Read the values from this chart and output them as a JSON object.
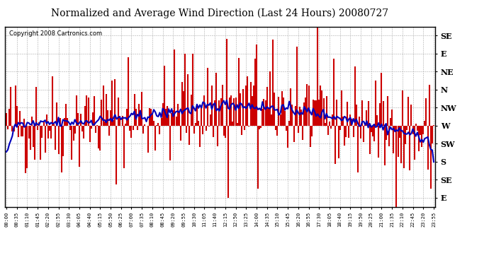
{
  "title": "Normalized and Average Wind Direction (Last 24 Hours) 20080727",
  "copyright": "Copyright 2008 Cartronics.com",
  "ytick_labels": [
    "SE",
    "E",
    "NE",
    "N",
    "NW",
    "W",
    "SW",
    "S",
    "SE",
    "E"
  ],
  "ytick_values": [
    8,
    7,
    6,
    5,
    4,
    3,
    2,
    1,
    0,
    -1
  ],
  "y_min": -1.5,
  "y_max": 8.5,
  "background_color": "#ffffff",
  "bar_color": "#cc0000",
  "line_color": "#0000bb",
  "title_fontsize": 10,
  "copyright_fontsize": 6,
  "random_seed": 42
}
